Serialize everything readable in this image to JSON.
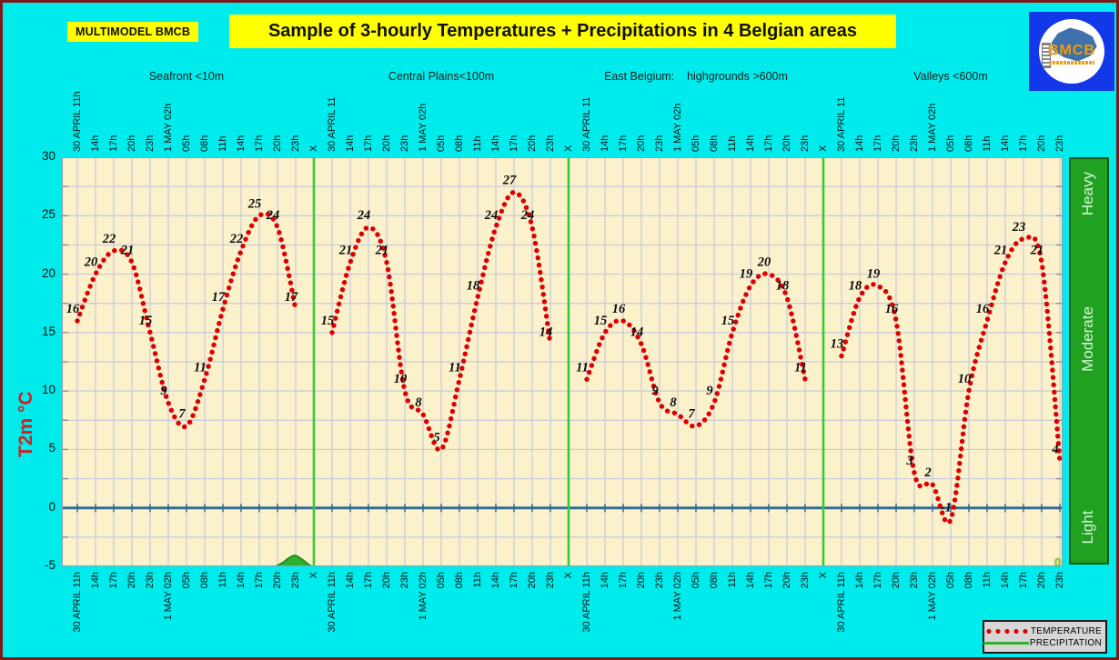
{
  "header": {
    "model_label": "MULTIMODEL BMCB",
    "title": "Sample of 3-hourly Temperatures + Precipitations in 4 Belgian areas",
    "logo": {
      "text": "BMCB"
    }
  },
  "axis": {
    "ylabel": "T2m °C",
    "yticks": [
      30,
      25,
      20,
      15,
      10,
      5,
      0,
      -5
    ],
    "separator_label": "X"
  },
  "precip_scale": {
    "labels": [
      "Heavy",
      "Moderate",
      "Light"
    ],
    "zero_label": "0"
  },
  "legend": {
    "temperature_label": "TEMPERATURE",
    "precipitation_label": "PRECIPITATION"
  },
  "colors": {
    "background": "#00ecec",
    "frame_border": "#7a1a1a",
    "plot_background": "#fbf1cb",
    "gridline": "#c9c9dc",
    "accent_yellow": "#ffff00",
    "temperature_red": "#dd0000",
    "zero_line_blue": "#336b96",
    "separator_green": "#33cc33",
    "precip_bar_green": "#21a121",
    "logo_blue": "#1238e8",
    "logo_orange": "#e8a020",
    "ylabel_red": "#cc2222"
  },
  "chart_data": {
    "type": "line",
    "title": "Sample of 3-hourly Temperatures + Precipitations in 4 Belgian areas",
    "ylabel": "T2m °C",
    "ylim": [
      -5,
      30
    ],
    "y_gridline_step": 2.5,
    "grid": true,
    "x_labels": [
      "30 APRIL 11h",
      "14h",
      "17h",
      "20h",
      "23h",
      "1 MAY 02h",
      "05h",
      "08h",
      "11h",
      "14h",
      "17h",
      "20h",
      "23h"
    ],
    "panels": [
      {
        "name": "Seafront <10m",
        "top_first_label": "30 APRIL 11h",
        "bottom_first_label": "30 APRIL 11h",
        "temperatures": [
          16,
          20,
          22,
          21,
          15,
          9,
          7,
          11,
          17,
          22,
          25,
          24,
          17
        ],
        "separator_after": true
      },
      {
        "name": "Central Plains<100m",
        "top_first_label": "30 APRIL 11",
        "bottom_first_label": "30 APRIL 11h",
        "temperatures": [
          15,
          21,
          24,
          21,
          10,
          8,
          5,
          11,
          18,
          24,
          27,
          24,
          14
        ],
        "separator_after": true
      },
      {
        "name": "East Belgium:    highgrounds >600m",
        "top_first_label": "30 APRIL 11",
        "bottom_first_label": "30 APRIL 11h",
        "temperatures": [
          11,
          15,
          16,
          14,
          9,
          8,
          7,
          9,
          15,
          19,
          20,
          18,
          11
        ],
        "separator_after": true
      },
      {
        "name": "Valleys <600m",
        "top_first_label": "30 APRIL 11",
        "bottom_first_label": "30 APRIL 11h",
        "temperatures": [
          13,
          18,
          19,
          16,
          3,
          2,
          -1,
          10,
          16,
          21,
          23,
          21,
          4
        ],
        "separator_after": false
      }
    ],
    "zero_line": 0,
    "precipitation": {
      "panel_index": 0,
      "description": "small light precipitation bump near 1 MAY 20h-23h in Seafront panel",
      "profile_tick_offsets": [
        10.9,
        11.3,
        11.7,
        12.0,
        12.4,
        12.7,
        12.95
      ],
      "profile_heights_degC": [
        0,
        0.35,
        0.8,
        0.93,
        0.55,
        0.18,
        0
      ]
    },
    "series_styles": {
      "temperature_color": "#dd0000",
      "precipitation_color": "#2faf2f",
      "precipitation_stroke": "#118811"
    },
    "legend_position": "bottom-right"
  }
}
